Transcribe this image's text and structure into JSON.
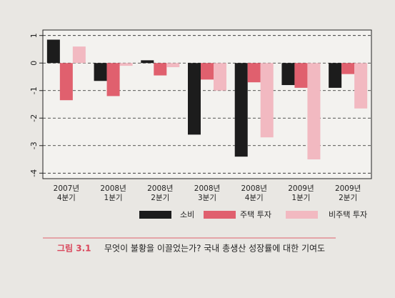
{
  "chart_data": {
    "type": "bar",
    "categories": [
      "2007년\n4분기",
      "2008년\n1분기",
      "2008년\n2분기",
      "2008년\n3분기",
      "2008년\n4분기",
      "2009년\n1분기",
      "2009년\n2분기"
    ],
    "series": [
      {
        "name": "소비",
        "color": "#1c1c1c",
        "values": [
          0.85,
          -0.65,
          0.1,
          -2.6,
          -3.4,
          -0.8,
          -0.9
        ]
      },
      {
        "name": "주택 투자",
        "color": "#e0606e",
        "values": [
          -1.35,
          -1.2,
          -0.45,
          -0.6,
          -0.7,
          -0.9,
          -0.4
        ]
      },
      {
        "name": "비주택 투자",
        "color": "#f2b9c1",
        "values": [
          0.6,
          -0.1,
          -0.15,
          -1.0,
          -2.7,
          -3.5,
          -1.65
        ]
      }
    ],
    "ylim": [
      -4.2,
      1.2
    ],
    "yticks": [
      1,
      0,
      -1,
      -2,
      -3,
      -4
    ],
    "grid": true,
    "figure_label": "그림 3.1",
    "caption": "무엇이 불황을 이끌었는가? 국내 총생산 성장률에 대한 기여도"
  }
}
